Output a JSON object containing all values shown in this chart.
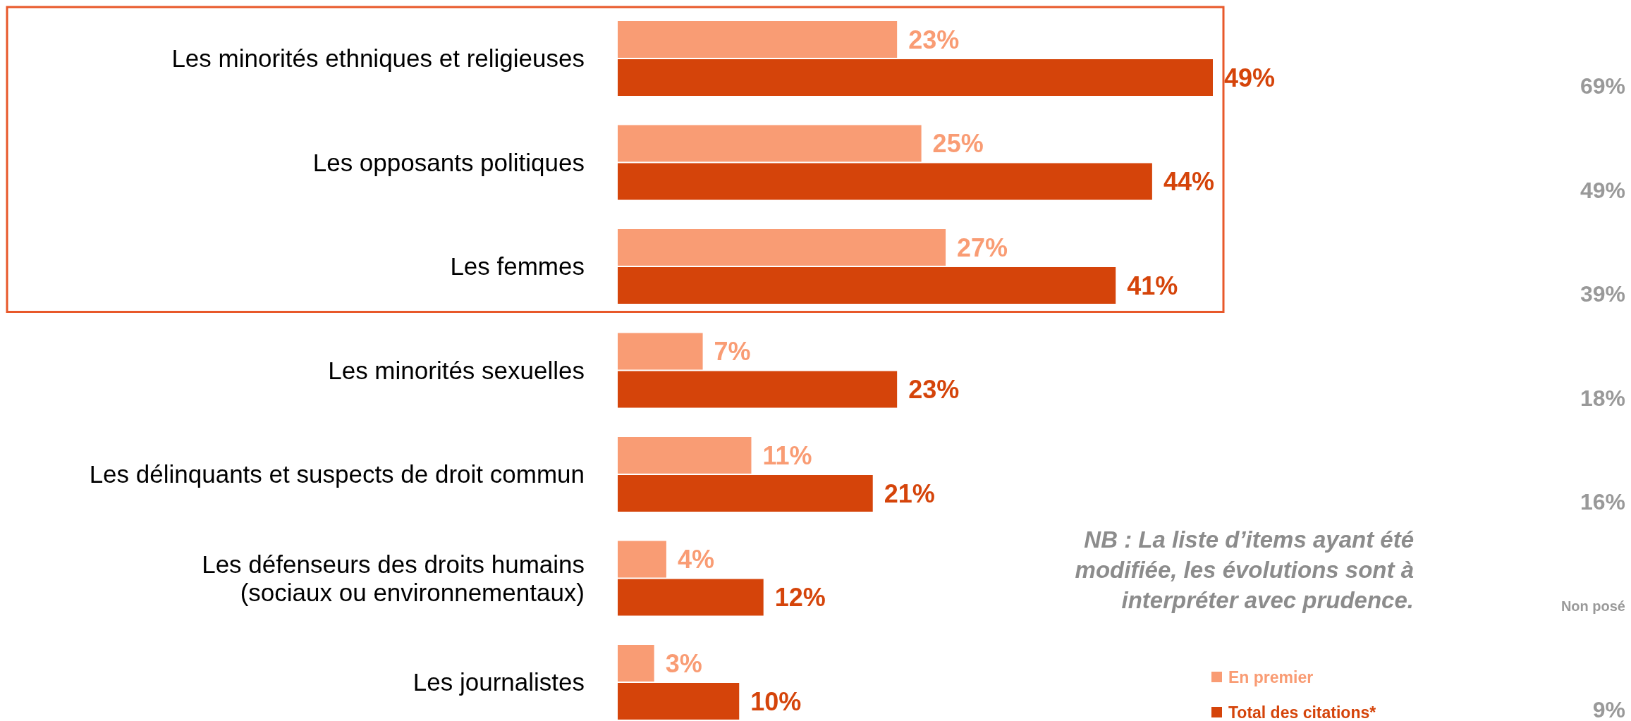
{
  "chart_data": {
    "type": "bar",
    "orientation": "horizontal",
    "categories": [
      "Les minorités ethniques et religieuses",
      "Les opposants politiques",
      "Les femmes",
      "Les minorités sexuelles",
      "Les délinquants et suspects de droit commun",
      "Les défenseurs des droits humains\n(sociaux ou environnementaux)",
      "Les journalistes"
    ],
    "series": [
      {
        "name": "En premier",
        "color": "#f99c74",
        "values": [
          23,
          25,
          27,
          7,
          11,
          4,
          3
        ],
        "value_labels": [
          "23%",
          "25%",
          "27%",
          "7%",
          "11%",
          "4%",
          "3%"
        ]
      },
      {
        "name": "Total des citations*",
        "color": "#d5440a",
        "values": [
          49,
          44,
          41,
          23,
          21,
          12,
          10
        ],
        "value_labels": [
          "49%",
          "44%",
          "41%",
          "23%",
          "21%",
          "12%",
          "10%"
        ]
      }
    ],
    "legend": "bottom right",
    "annotations": [
      "NB : La liste d’items ayant été modifiée, les évolutions sont à interpréter avec prudence.",
      "69%",
      "49%",
      "39%",
      "18%",
      "16%",
      "Non posé",
      "9%"
    ]
  }
}
